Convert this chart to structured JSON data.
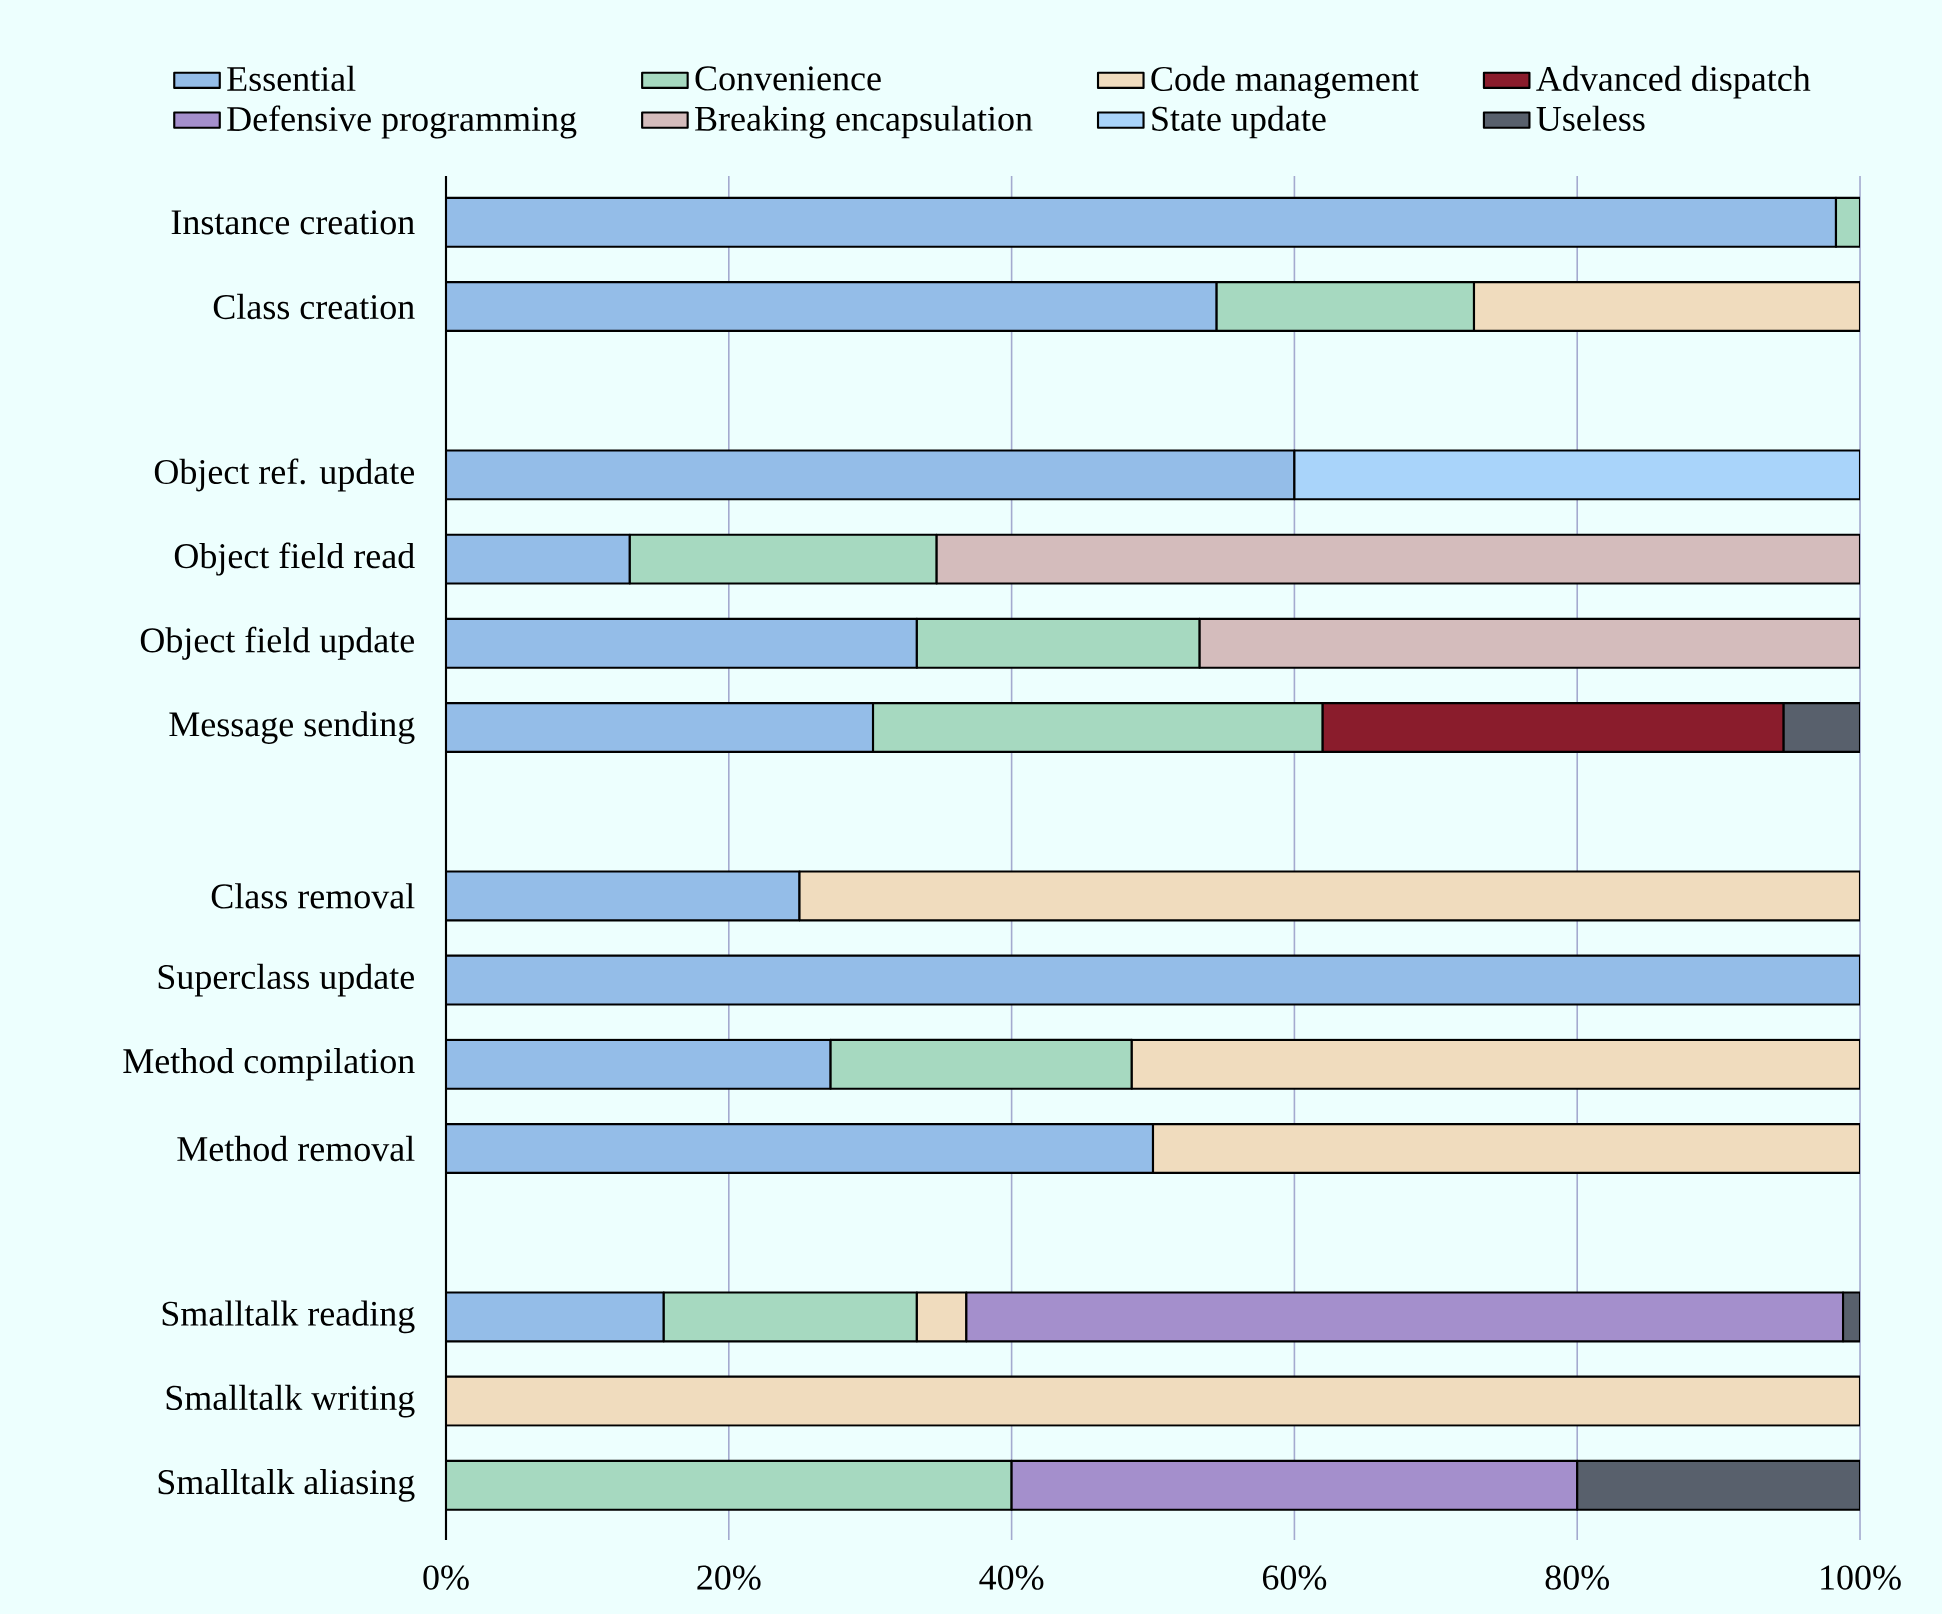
{
  "chart_data": {
    "type": "bar",
    "orientation": "horizontal",
    "stacked": true,
    "grid": "x",
    "legend": "top",
    "categories": [
      "Instance creation",
      "Class creation",
      null,
      "Object ref. update",
      "Object field read",
      "Object field update",
      "Message sending",
      null,
      "Class removal",
      "Superclass update",
      "Method compilation",
      "Method removal",
      null,
      "Smalltalk reading",
      "Smalltalk writing",
      "Smalltalk aliasing"
    ],
    "xlim": [
      0,
      100
    ],
    "xticks": [
      {
        "value": 0,
        "label": "0%"
      },
      {
        "value": 20,
        "label": "20%"
      },
      {
        "value": 40,
        "label": "40%"
      },
      {
        "value": 60,
        "label": "60%"
      },
      {
        "value": 80,
        "label": "80%"
      },
      {
        "value": 100,
        "label": "100%"
      }
    ],
    "series": [
      {
        "name": "Essential",
        "color": "#94bde8",
        "values": [
          98.3,
          54.5,
          null,
          60,
          13,
          33.3,
          30.2,
          null,
          25,
          100,
          27.2,
          50,
          null,
          15.4,
          null,
          null
        ]
      },
      {
        "name": "Convenience",
        "color": "#a6d9c0",
        "values": [
          1.7,
          18.2,
          null,
          null,
          21.7,
          20,
          31.8,
          null,
          null,
          null,
          21.3,
          null,
          null,
          17.9,
          null,
          40
        ]
      },
      {
        "name": "Code management",
        "color": "#f0dcbe",
        "values": [
          null,
          27.3,
          null,
          null,
          null,
          null,
          null,
          null,
          75,
          null,
          51.5,
          50,
          null,
          3.5,
          100,
          null
        ]
      },
      {
        "name": "Advanced dispatch",
        "color": "#8a1c2c",
        "values": [
          null,
          null,
          null,
          null,
          null,
          null,
          32.6,
          null,
          null,
          null,
          null,
          null,
          null,
          null,
          null,
          null
        ]
      },
      {
        "name": "Defensive programming",
        "color": "#a48fcc",
        "values": [
          null,
          null,
          null,
          null,
          null,
          null,
          null,
          null,
          null,
          null,
          null,
          null,
          null,
          62,
          null,
          40
        ]
      },
      {
        "name": "Breaking encapsulation",
        "color": "#d4bcbc",
        "values": [
          null,
          null,
          null,
          null,
          65.3,
          46.7,
          null,
          null,
          null,
          null,
          null,
          null,
          null,
          null,
          null,
          null
        ]
      },
      {
        "name": "State update",
        "color": "#a9d4fa",
        "values": [
          null,
          null,
          null,
          40,
          null,
          null,
          null,
          null,
          null,
          null,
          null,
          null,
          null,
          null,
          null,
          null
        ]
      },
      {
        "name": "Useless",
        "color": "#58606c",
        "values": [
          null,
          null,
          null,
          null,
          null,
          null,
          5.4,
          null,
          null,
          null,
          null,
          null,
          null,
          1.2,
          null,
          20
        ]
      }
    ]
  }
}
